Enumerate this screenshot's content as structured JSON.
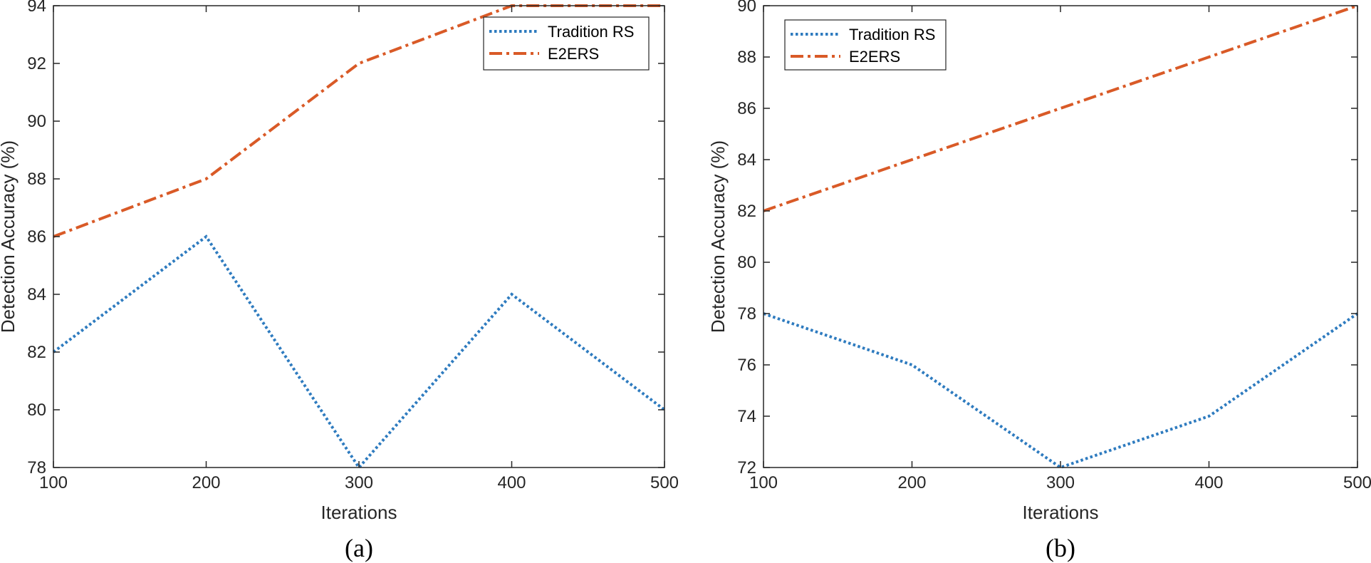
{
  "chart_data": [
    {
      "type": "line",
      "caption": "(a)",
      "xlabel": "Iterations",
      "ylabel": "Detection Accuracy (%)",
      "x": [
        100,
        200,
        300,
        400,
        500
      ],
      "xlim": [
        100,
        500
      ],
      "ylim": [
        78,
        94
      ],
      "xticks": [
        100,
        200,
        300,
        400,
        500
      ],
      "yticks": [
        78,
        80,
        82,
        84,
        86,
        88,
        90,
        92,
        94
      ],
      "grid": false,
      "legend_position": "top-right",
      "series": [
        {
          "name": "Tradition RS",
          "values": [
            82,
            86,
            78,
            84,
            80
          ],
          "color": "#2e7bbf",
          "style": "dotted"
        },
        {
          "name": "E2ERS",
          "values": [
            86,
            88,
            92,
            94,
            94
          ],
          "color": "#d95a27",
          "style": "dash-dot"
        }
      ]
    },
    {
      "type": "line",
      "caption": "(b)",
      "xlabel": "Iterations",
      "ylabel": "Detection Accuracy (%)",
      "x": [
        100,
        200,
        300,
        400,
        500
      ],
      "xlim": [
        100,
        500
      ],
      "ylim": [
        72,
        90
      ],
      "xticks": [
        100,
        200,
        300,
        400,
        500
      ],
      "yticks": [
        72,
        74,
        76,
        78,
        80,
        82,
        84,
        86,
        88,
        90
      ],
      "grid": false,
      "legend_position": "top-left",
      "series": [
        {
          "name": "Tradition RS",
          "values": [
            78,
            76,
            72,
            74,
            78
          ],
          "color": "#2e7bbf",
          "style": "dotted"
        },
        {
          "name": "E2ERS",
          "values": [
            82,
            84,
            86,
            88,
            90
          ],
          "color": "#d95a27",
          "style": "dash-dot"
        }
      ]
    }
  ]
}
